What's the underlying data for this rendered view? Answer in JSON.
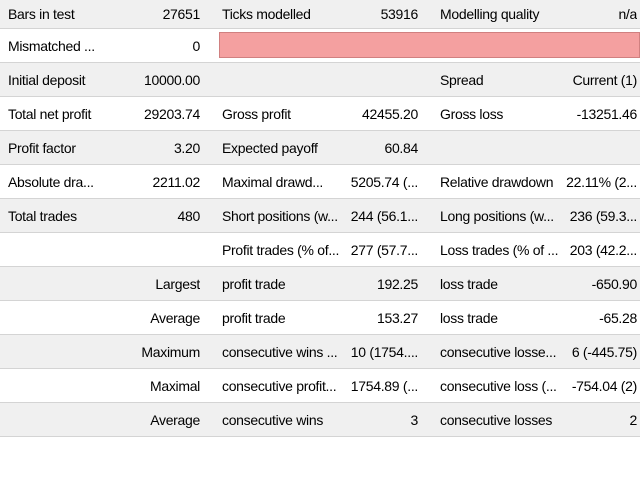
{
  "row1": {
    "bars_label": "Bars in test",
    "bars_value": "27651",
    "ticks_label": "Ticks modelled",
    "ticks_value": "53916",
    "quality_label": "Modelling quality",
    "quality_value": "n/a"
  },
  "row2": {
    "mismatched_label": "Mismatched ...",
    "mismatched_value": "0",
    "quality_bar_color": "#f4a0a0"
  },
  "row3": {
    "deposit_label": "Initial deposit",
    "deposit_value": "10000.00",
    "spread_label": "Spread",
    "spread_value": "Current (1)"
  },
  "row4": {
    "net_profit_label": "Total net profit",
    "net_profit_value": "29203.74",
    "gross_profit_label": "Gross profit",
    "gross_profit_value": "42455.20",
    "gross_loss_label": "Gross loss",
    "gross_loss_value": "-13251.46"
  },
  "row5": {
    "profit_factor_label": "Profit factor",
    "profit_factor_value": "3.20",
    "expected_payoff_label": "Expected payoff",
    "expected_payoff_value": "60.84"
  },
  "row6": {
    "abs_dd_label": "Absolute dra...",
    "abs_dd_value": "2211.02",
    "max_dd_label": "Maximal drawd...",
    "max_dd_value": "5205.74 (...",
    "rel_dd_label": "Relative drawdown",
    "rel_dd_value": "22.11% (2..."
  },
  "row7": {
    "total_trades_label": "Total trades",
    "total_trades_value": "480",
    "short_label": "Short positions (w...",
    "short_value": "244 (56.1...",
    "long_label": "Long positions (w...",
    "long_value": "236 (59.3..."
  },
  "row8": {
    "profit_trades_label": "Profit trades (% of...",
    "profit_trades_value": "277 (57.7...",
    "loss_trades_label": "Loss trades (% of ...",
    "loss_trades_value": "203 (42.2..."
  },
  "row9": {
    "prefix": "Largest",
    "profit_label": "profit trade",
    "profit_value": "192.25",
    "loss_label": "loss trade",
    "loss_value": "-650.90"
  },
  "row10": {
    "prefix": "Average",
    "profit_label": "profit trade",
    "profit_value": "153.27",
    "loss_label": "loss trade",
    "loss_value": "-65.28"
  },
  "row11": {
    "prefix": "Maximum",
    "wins_label": "consecutive wins ...",
    "wins_value": "10 (1754....",
    "losses_label": "consecutive losse...",
    "losses_value": "6 (-445.75)"
  },
  "row12": {
    "prefix": "Maximal",
    "profit_label": "consecutive profit...",
    "profit_value": "1754.89 (...",
    "loss_label": "consecutive loss (...",
    "loss_value": "-754.04 (2)"
  },
  "row13": {
    "prefix": "Average",
    "wins_label": "consecutive wins",
    "wins_value": "3",
    "losses_label": "consecutive losses",
    "losses_value": "2"
  }
}
